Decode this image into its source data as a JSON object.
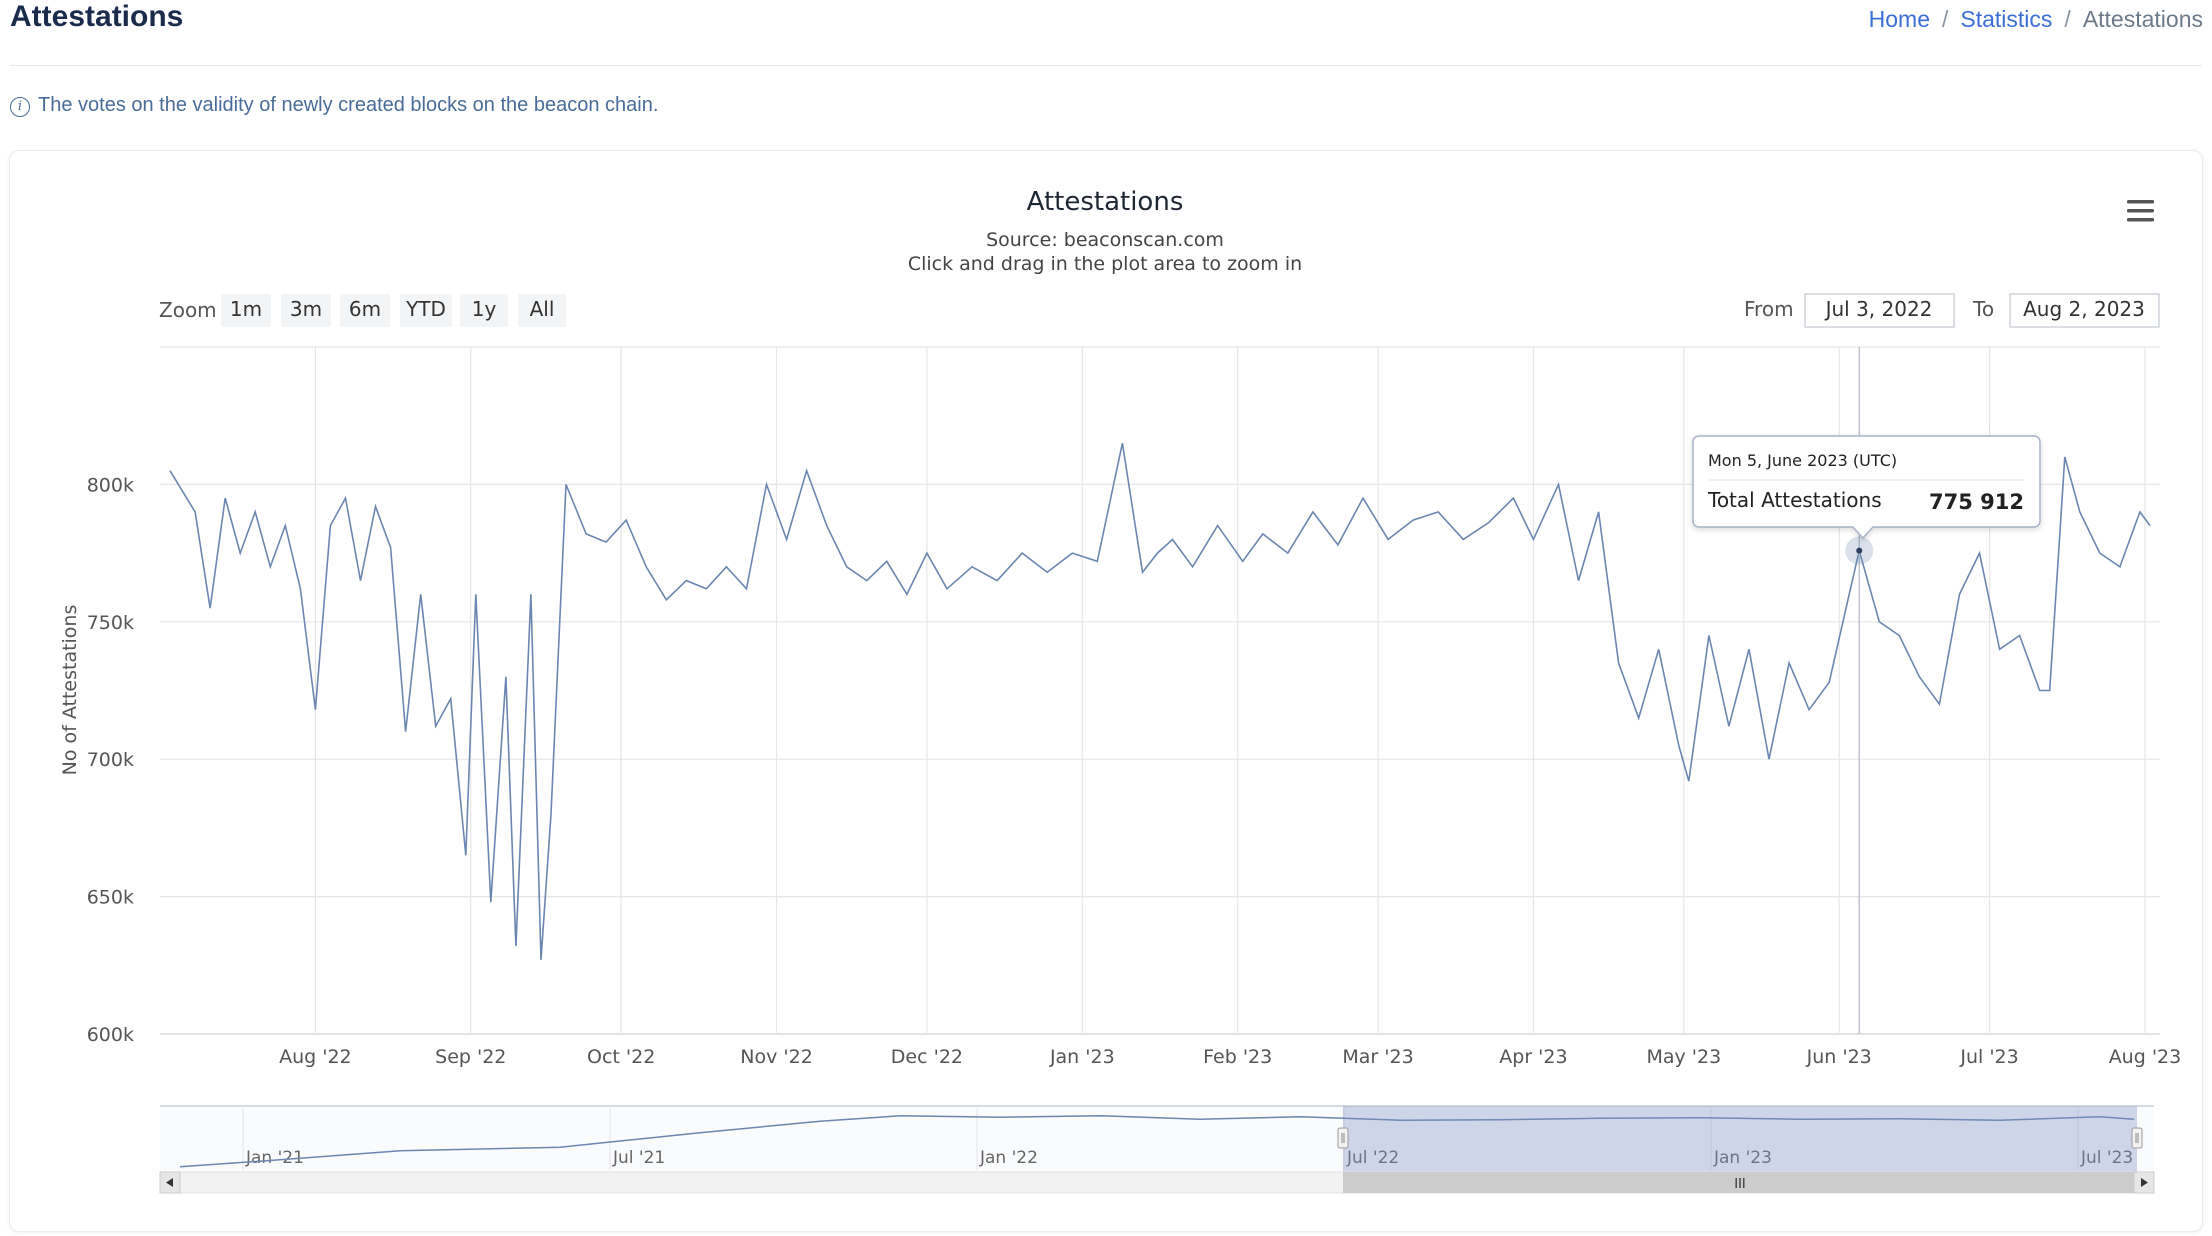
{
  "page": {
    "title": "Attestations",
    "breadcrumb": [
      "Home",
      "Statistics",
      "Attestations"
    ],
    "description": "The votes on the validity of newly created blocks on the beacon chain."
  },
  "chart_ui": {
    "zoom_label": "Zoom",
    "zoom_buttons": [
      "1m",
      "3m",
      "6m",
      "YTD",
      "1y",
      "All"
    ],
    "from_label": "From",
    "from_value": "Jul 3, 2022",
    "to_label": "To",
    "to_value": "Aug 2, 2023",
    "menu_icon": "hamburger-menu-icon",
    "tooltip": {
      "date": "Mon 5, June 2023 (UTC)",
      "label": "Total Attestations",
      "value": "775 912"
    },
    "navigator_labels": [
      "Jan '21",
      "Jul '21",
      "Jan '22",
      "Jul '22",
      "Jan '23",
      "Jul '23"
    ],
    "line_color": "#6b86b0"
  },
  "chart_data": {
    "type": "line",
    "title": "Attestations",
    "subtitle": "Source: beaconscan.com",
    "subtitle2": "Click and drag in the plot area to zoom in",
    "ylabel": "No of Attestations",
    "xlabel": "",
    "ylim": [
      600000,
      850000
    ],
    "yticks": [
      "600k",
      "650k",
      "700k",
      "750k",
      "800k"
    ],
    "xticks": [
      "Aug '22",
      "Sep '22",
      "Oct '22",
      "Nov '22",
      "Dec '22",
      "Jan '23",
      "Feb '23",
      "Mar '23",
      "Apr '23",
      "May '23",
      "Jun '23",
      "Jul '23",
      "Aug '23"
    ],
    "grid": true,
    "series": [
      {
        "x": [
          "2022-07-03",
          "2022-07-08",
          "2022-07-11",
          "2022-07-14",
          "2022-07-17",
          "2022-07-20",
          "2022-07-23",
          "2022-07-26",
          "2022-07-29",
          "2022-08-01",
          "2022-08-04",
          "2022-08-07",
          "2022-08-10",
          "2022-08-13",
          "2022-08-16",
          "2022-08-19",
          "2022-08-22",
          "2022-08-25",
          "2022-08-28",
          "2022-08-31",
          "2022-09-02",
          "2022-09-05",
          "2022-09-08",
          "2022-09-10",
          "2022-09-13",
          "2022-09-15",
          "2022-09-17",
          "2022-09-20",
          "2022-09-24",
          "2022-09-28",
          "2022-10-02",
          "2022-10-06",
          "2022-10-10",
          "2022-10-14",
          "2022-10-18",
          "2022-10-22",
          "2022-10-26",
          "2022-10-30",
          "2022-11-03",
          "2022-11-07",
          "2022-11-11",
          "2022-11-15",
          "2022-11-19",
          "2022-11-23",
          "2022-11-27",
          "2022-12-01",
          "2022-12-05",
          "2022-12-10",
          "2022-12-15",
          "2022-12-20",
          "2022-12-25",
          "2022-12-30",
          "2023-01-04",
          "2023-01-09",
          "2023-01-13",
          "2023-01-16",
          "2023-01-19",
          "2023-01-23",
          "2023-01-28",
          "2023-02-02",
          "2023-02-06",
          "2023-02-11",
          "2023-02-16",
          "2023-02-21",
          "2023-02-26",
          "2023-03-03",
          "2023-03-08",
          "2023-03-13",
          "2023-03-18",
          "2023-03-23",
          "2023-03-28",
          "2023-04-01",
          "2023-04-06",
          "2023-04-10",
          "2023-04-14",
          "2023-04-18",
          "2023-04-22",
          "2023-04-26",
          "2023-04-30",
          "2023-05-02",
          "2023-05-06",
          "2023-05-10",
          "2023-05-14",
          "2023-05-18",
          "2023-05-22",
          "2023-05-26",
          "2023-05-30",
          "2023-06-03",
          "2023-06-05",
          "2023-06-09",
          "2023-06-13",
          "2023-06-17",
          "2023-06-21",
          "2023-06-25",
          "2023-06-29",
          "2023-07-03",
          "2023-07-07",
          "2023-07-11",
          "2023-07-13",
          "2023-07-16",
          "2023-07-19",
          "2023-07-23",
          "2023-07-27",
          "2023-07-31",
          "2023-08-02"
        ],
        "values": [
          805000,
          790000,
          755000,
          795000,
          775000,
          790000,
          770000,
          785000,
          762000,
          718000,
          785000,
          795000,
          765000,
          792000,
          777000,
          710000,
          760000,
          712000,
          722000,
          665000,
          760000,
          648000,
          730000,
          632000,
          760000,
          627000,
          680000,
          800000,
          782000,
          779000,
          787000,
          770000,
          758000,
          765000,
          762000,
          770000,
          762000,
          800000,
          780000,
          805000,
          785000,
          770000,
          765000,
          772000,
          760000,
          775000,
          762000,
          770000,
          765000,
          775000,
          768000,
          775000,
          772000,
          815000,
          768000,
          775000,
          780000,
          770000,
          785000,
          772000,
          782000,
          775000,
          790000,
          778000,
          795000,
          780000,
          787000,
          790000,
          780000,
          786000,
          795000,
          780000,
          800000,
          765000,
          790000,
          735000,
          715000,
          740000,
          705000,
          692000,
          745000,
          712000,
          740000,
          700000,
          735000,
          718000,
          728000,
          760000,
          775912,
          750000,
          745000,
          730000,
          720000,
          760000,
          775000,
          740000,
          745000,
          725000,
          725000,
          810000,
          790000,
          775000,
          770000,
          790000,
          785000
        ]
      }
    ]
  }
}
